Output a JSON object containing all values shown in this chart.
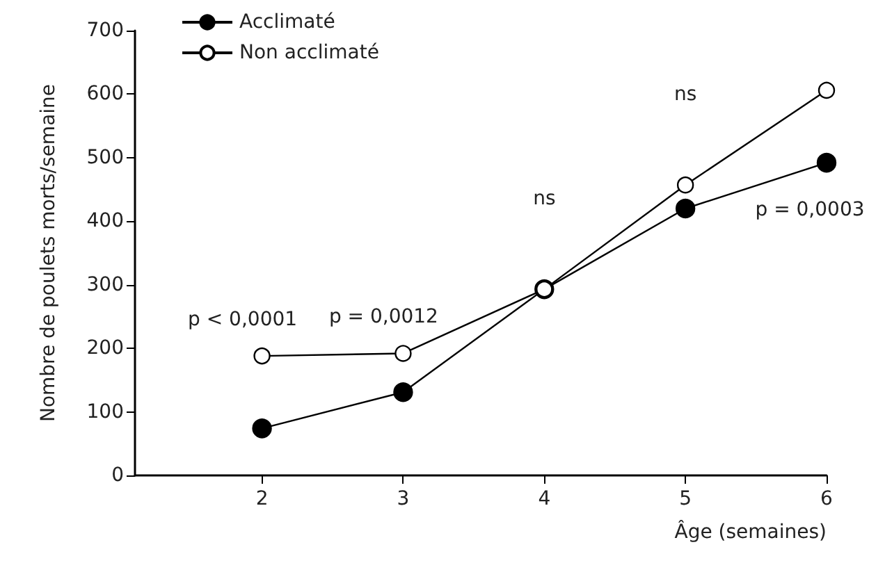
{
  "chart_data": {
    "type": "line",
    "xlabel": "Âge (semaines)",
    "ylabel": "Nombre de poulets morts/semaine",
    "x": [
      2,
      3,
      4,
      5,
      6
    ],
    "series": [
      {
        "name": "Acclimaté",
        "color": "#000000",
        "values": [
          74,
          131,
          293,
          420,
          492
        ]
      },
      {
        "name": "Non acclimaté",
        "color": "#ffffff",
        "values": [
          188,
          192,
          293,
          457,
          606
        ]
      }
    ],
    "xlim": [
      1.1,
      6
    ],
    "xticks": [
      2,
      3,
      4,
      5,
      6
    ],
    "ylim": [
      0,
      700
    ],
    "yticks": [
      0,
      100,
      200,
      300,
      400,
      500,
      600,
      700
    ],
    "annotations": [
      "p < 0,0001",
      "p = 0,0012",
      "ns",
      "ns",
      "p = 0,0003"
    ],
    "grid": false,
    "legend": "top left",
    "marker": "circle",
    "line_style": "solid"
  }
}
